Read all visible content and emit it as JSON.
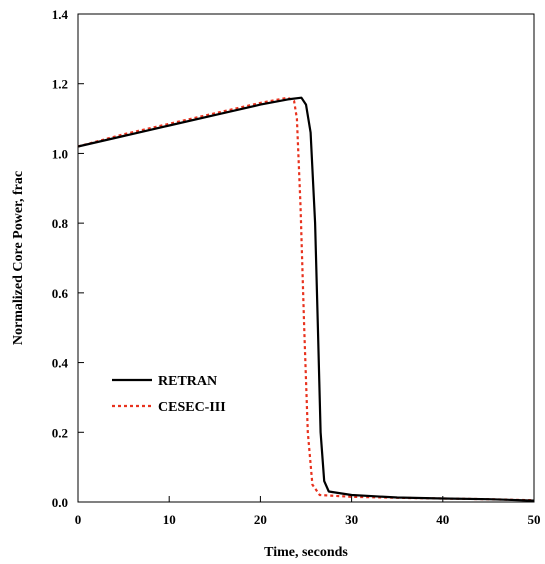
{
  "chart_data": {
    "type": "line",
    "xlabel": "Time, seconds",
    "ylabel": "Normalized Core Power, frac",
    "xlim": [
      0,
      50
    ],
    "ylim": [
      0,
      1.4
    ],
    "xticks": [
      0,
      10,
      20,
      30,
      40,
      50
    ],
    "yticks": [
      0.0,
      0.2,
      0.4,
      0.6,
      0.8,
      1.0,
      1.2,
      1.4
    ],
    "ytick_labels": [
      "0.0",
      "0.2",
      "0.4",
      "0.6",
      "0.8",
      "1.0",
      "1.2",
      "1.4"
    ],
    "grid": false,
    "legend_position": "lower-left",
    "series": [
      {
        "name": "RETRAN",
        "color": "#000000",
        "style": "solid",
        "points": [
          [
            0,
            1.02
          ],
          [
            5,
            1.05
          ],
          [
            10,
            1.08
          ],
          [
            15,
            1.11
          ],
          [
            20,
            1.14
          ],
          [
            23,
            1.155
          ],
          [
            24.5,
            1.16
          ],
          [
            25.0,
            1.14
          ],
          [
            25.5,
            1.06
          ],
          [
            26.0,
            0.8
          ],
          [
            26.3,
            0.5
          ],
          [
            26.6,
            0.2
          ],
          [
            27.0,
            0.06
          ],
          [
            27.5,
            0.03
          ],
          [
            30,
            0.02
          ],
          [
            35,
            0.013
          ],
          [
            40,
            0.01
          ],
          [
            45,
            0.008
          ],
          [
            50,
            0.004
          ]
        ]
      },
      {
        "name": "CESEC-III",
        "color": "#e8321e",
        "style": "dashed",
        "points": [
          [
            0,
            1.02
          ],
          [
            5,
            1.055
          ],
          [
            10,
            1.085
          ],
          [
            15,
            1.115
          ],
          [
            20,
            1.145
          ],
          [
            23.0,
            1.16
          ],
          [
            23.7,
            1.15
          ],
          [
            24.0,
            1.1
          ],
          [
            24.4,
            0.85
          ],
          [
            24.8,
            0.5
          ],
          [
            25.2,
            0.2
          ],
          [
            25.7,
            0.05
          ],
          [
            26.5,
            0.02
          ],
          [
            30,
            0.015
          ],
          [
            35,
            0.012
          ],
          [
            40,
            0.01
          ],
          [
            45,
            0.008
          ],
          [
            50,
            0.005
          ]
        ]
      }
    ]
  }
}
